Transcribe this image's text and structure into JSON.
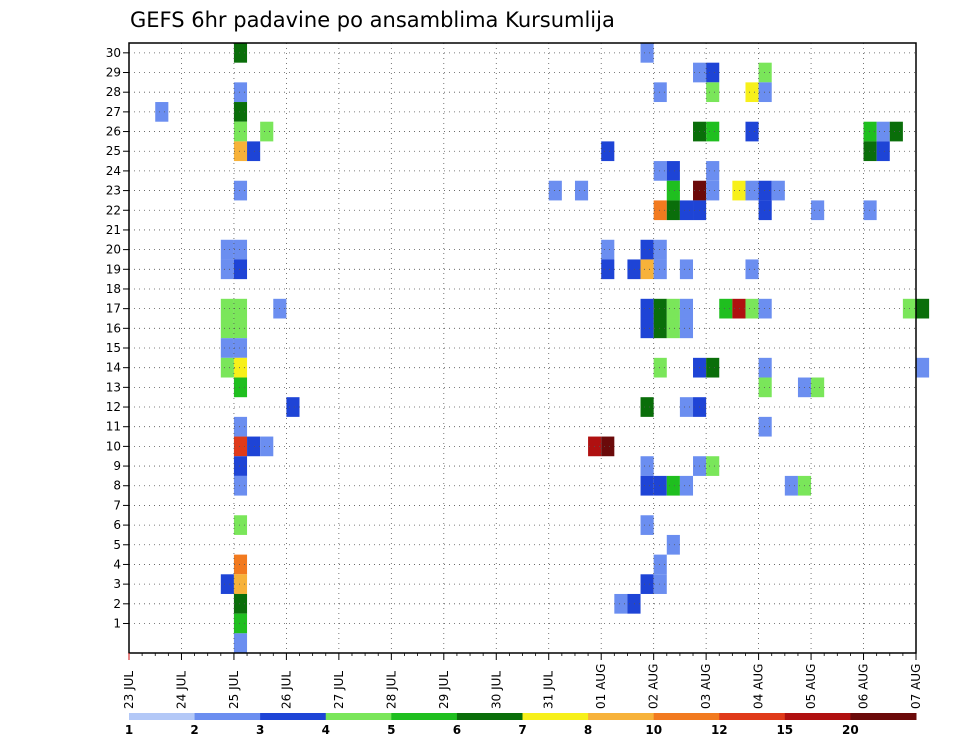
{
  "chart_data": {
    "type": "heatmap",
    "title": "GEFS 6hr padavine po ansamblima Kursumlija",
    "xlabel": "",
    "ylabel": "",
    "x_tick_labels": [
      "23 JUL",
      "24 JUL",
      "25 JUL",
      "26 JUL",
      "27 JUL",
      "28 JUL",
      "29 JUL",
      "30 JUL",
      "31 JUL",
      "01 AUG",
      "02 AUG",
      "03 AUG",
      "04 AUG",
      "05 AUG",
      "06 AUG",
      "07 AUG"
    ],
    "y_tick_labels": [
      "1",
      "2",
      "3",
      "4",
      "5",
      "6",
      "7",
      "8",
      "9",
      "10",
      "11",
      "12",
      "13",
      "14",
      "15",
      "16",
      "17",
      "18",
      "19",
      "20",
      "21",
      "22",
      "23",
      "24",
      "25",
      "26",
      "27",
      "28",
      "29",
      "30"
    ],
    "x_time_step": "6hr",
    "grid": true,
    "grid_style": "dotted",
    "colorbar": {
      "levels": [
        "1",
        "2",
        "3",
        "4",
        "5",
        "6",
        "7",
        "8",
        "10",
        "12",
        "15",
        "20"
      ],
      "colors": [
        "#b3c8f7",
        "#6b8ef0",
        "#1e44d6",
        "#7ae65a",
        "#1fbf1f",
        "#0a6e0a",
        "#f7f01a",
        "#f7b23a",
        "#f27a1f",
        "#e03a1a",
        "#b01010",
        "#6b0a0a"
      ],
      "position": "bottom"
    },
    "cells": [
      [
        "07-25 00",
        30,
        5
      ],
      [
        "07-25 00",
        28,
        1
      ],
      [
        "07-25 00",
        27,
        5
      ],
      [
        "07-25 00",
        26,
        3
      ],
      [
        "07-25 00",
        25,
        7
      ],
      [
        "07-25 06",
        25,
        2
      ],
      [
        "07-25 12",
        26,
        3
      ],
      [
        "07-25 00",
        23,
        1
      ],
      [
        "07-24 18",
        20,
        1
      ],
      [
        "07-25 00",
        20,
        1
      ],
      [
        "07-24 18",
        19,
        1
      ],
      [
        "07-25 00",
        19,
        2
      ],
      [
        "07-24 18",
        17,
        3
      ],
      [
        "07-25 00",
        17,
        3
      ],
      [
        "07-25 18",
        17,
        1
      ],
      [
        "07-24 18",
        16,
        3
      ],
      [
        "07-25 00",
        16,
        3
      ],
      [
        "07-24 18",
        15,
        1
      ],
      [
        "07-25 00",
        15,
        1
      ],
      [
        "07-24 18",
        14,
        3
      ],
      [
        "07-25 00",
        14,
        6
      ],
      [
        "07-25 00",
        13,
        4
      ],
      [
        "07-26 00",
        12,
        2
      ],
      [
        "07-25 00",
        11,
        1
      ],
      [
        "07-25 00",
        10,
        9
      ],
      [
        "07-25 06",
        10,
        2
      ],
      [
        "07-25 12",
        10,
        1
      ],
      [
        "07-25 00",
        9,
        2
      ],
      [
        "07-25 00",
        8,
        1
      ],
      [
        "07-25 00",
        6,
        3
      ],
      [
        "07-25 00",
        4,
        8
      ],
      [
        "07-24 18",
        3,
        2
      ],
      [
        "07-25 00",
        3,
        7
      ],
      [
        "07-25 00",
        2,
        5
      ],
      [
        "07-25 00",
        1,
        4
      ],
      [
        "07-25 00",
        0,
        1
      ],
      [
        "07-23 12",
        27,
        1
      ],
      [
        "07-31 00",
        23,
        1
      ],
      [
        "07-31 12",
        23,
        1
      ],
      [
        "07-31 18",
        10,
        10
      ],
      [
        "08-01 00",
        10,
        11
      ],
      [
        "08-01 00",
        25,
        2
      ],
      [
        "08-01 00",
        20,
        1
      ],
      [
        "08-01 00",
        19,
        2
      ],
      [
        "08-01 06",
        2,
        1
      ],
      [
        "08-01 12",
        2,
        2
      ],
      [
        "08-01 12",
        19,
        2
      ],
      [
        "08-01 18",
        30,
        1
      ],
      [
        "08-01 18",
        20,
        2
      ],
      [
        "08-01 18",
        19,
        7
      ],
      [
        "08-01 18",
        17,
        2
      ],
      [
        "08-01 18",
        16,
        2
      ],
      [
        "08-01 18",
        12,
        5
      ],
      [
        "08-01 18",
        9,
        1
      ],
      [
        "08-01 18",
        8,
        2
      ],
      [
        "08-01 18",
        6,
        1
      ],
      [
        "08-01 18",
        3,
        2
      ],
      [
        "08-02 00",
        24,
        1
      ],
      [
        "08-02 00",
        22,
        8
      ],
      [
        "08-02 00",
        20,
        1
      ],
      [
        "08-02 00",
        19,
        1
      ],
      [
        "08-02 00",
        17,
        5
      ],
      [
        "08-02 00",
        16,
        5
      ],
      [
        "08-02 00",
        14,
        3
      ],
      [
        "08-02 00",
        8,
        2
      ],
      [
        "08-02 00",
        4,
        1
      ],
      [
        "08-02 00",
        3,
        1
      ],
      [
        "08-02 00",
        28,
        1
      ],
      [
        "08-02 06",
        24,
        2
      ],
      [
        "08-02 06",
        23,
        4
      ],
      [
        "08-02 06",
        22,
        5
      ],
      [
        "08-02 06",
        17,
        3
      ],
      [
        "08-02 06",
        16,
        3
      ],
      [
        "08-02 06",
        8,
        4
      ],
      [
        "08-02 06",
        5,
        1
      ],
      [
        "08-02 12",
        22,
        2
      ],
      [
        "08-02 12",
        19,
        1
      ],
      [
        "08-02 12",
        17,
        1
      ],
      [
        "08-02 12",
        16,
        1
      ],
      [
        "08-02 12",
        12,
        1
      ],
      [
        "08-02 12",
        8,
        1
      ],
      [
        "08-02 18",
        29,
        1
      ],
      [
        "08-02 18",
        26,
        5
      ],
      [
        "08-02 18",
        23,
        11
      ],
      [
        "08-02 18",
        22,
        2
      ],
      [
        "08-02 18",
        14,
        2
      ],
      [
        "08-02 18",
        12,
        2
      ],
      [
        "08-02 18",
        9,
        1
      ],
      [
        "08-03 00",
        29,
        2
      ],
      [
        "08-03 00",
        28,
        3
      ],
      [
        "08-03 00",
        26,
        4
      ],
      [
        "08-03 00",
        24,
        1
      ],
      [
        "08-03 00",
        23,
        1
      ],
      [
        "08-03 00",
        14,
        5
      ],
      [
        "08-03 00",
        9,
        3
      ],
      [
        "08-03 06",
        17,
        4
      ],
      [
        "08-03 12",
        23,
        6
      ],
      [
        "08-03 12",
        17,
        10
      ],
      [
        "08-03 18",
        28,
        6
      ],
      [
        "08-03 18",
        26,
        2
      ],
      [
        "08-03 18",
        23,
        1
      ],
      [
        "08-03 18",
        19,
        1
      ],
      [
        "08-03 18",
        17,
        3
      ],
      [
        "08-04 00",
        29,
        3
      ],
      [
        "08-04 00",
        28,
        1
      ],
      [
        "08-04 00",
        23,
        2
      ],
      [
        "08-04 00",
        22,
        2
      ],
      [
        "08-04 00",
        17,
        1
      ],
      [
        "08-04 00",
        14,
        1
      ],
      [
        "08-04 00",
        13,
        3
      ],
      [
        "08-04 00",
        11,
        1
      ],
      [
        "08-04 06",
        23,
        1
      ],
      [
        "08-04 12",
        8,
        1
      ],
      [
        "08-04 18",
        13,
        1
      ],
      [
        "08-04 18",
        8,
        3
      ],
      [
        "08-05 00",
        13,
        3
      ],
      [
        "08-05 00",
        22,
        1
      ],
      [
        "08-06 00",
        26,
        4
      ],
      [
        "08-06 00",
        25,
        5
      ],
      [
        "08-06 00",
        22,
        1
      ],
      [
        "08-06 06",
        26,
        1
      ],
      [
        "08-06 06",
        25,
        2
      ],
      [
        "08-06 12",
        26,
        5
      ],
      [
        "08-06 18",
        17,
        3
      ],
      [
        "08-07 00",
        17,
        5
      ],
      [
        "08-07 00",
        14,
        1
      ]
    ]
  }
}
